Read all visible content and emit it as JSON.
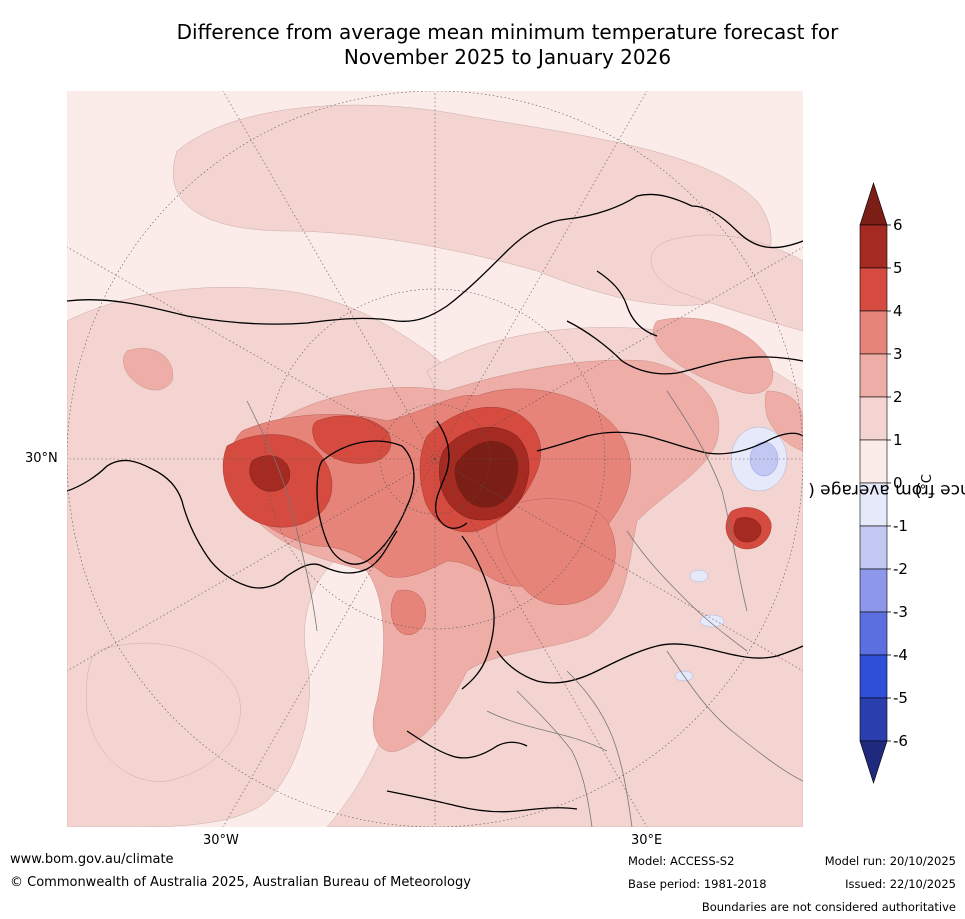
{
  "title": {
    "line1": "Difference from average mean minimum temperature forecast for",
    "line2": "November 2025 to January 2026"
  },
  "map": {
    "projection": "north-polar-stereographic",
    "lat_label": "30°N",
    "lon_labels": [
      "30°W",
      "30°E"
    ]
  },
  "colorbar": {
    "label": "Difference from average (°C)",
    "label_prefix": "Difference from average (",
    "label_unit": "°C",
    "label_suffix": ")",
    "ticks": [
      "6",
      "5",
      "4",
      "3",
      "2",
      "1",
      "0",
      "-1",
      "-2",
      "-3",
      "-4",
      "-5",
      "-6"
    ],
    "colors": {
      "above_6": "#7a1e16",
      "5_to_6": "#a52a22",
      "4_to_5": "#d54b3f",
      "3_to_4": "#e6847a",
      "2_to_3": "#eeaea7",
      "1_to_2": "#f4d4d0",
      "0_to_1": "#fbecea",
      "m1_to_0": "#e6e9fa",
      "m2_to_m1": "#c3c8f2",
      "m3_to_m2": "#8d98ea",
      "m4_to_m3": "#5c6fe0",
      "m5_to_m4": "#2f4fd8",
      "m6_to_m5": "#2a3eae",
      "below_m6": "#1f2a7d"
    }
  },
  "footer": {
    "url": "www.bom.gov.au/climate",
    "copyright": "© Commonwealth of Australia 2025, Australian Bureau of Meteorology",
    "model": "Model: ACCESS-S2",
    "base_period": "Base period: 1981-2018",
    "model_run": "Model run: 20/10/2025",
    "issued": "Issued: 22/10/2025",
    "disclaimer": "Boundaries are not considered authoritative"
  }
}
